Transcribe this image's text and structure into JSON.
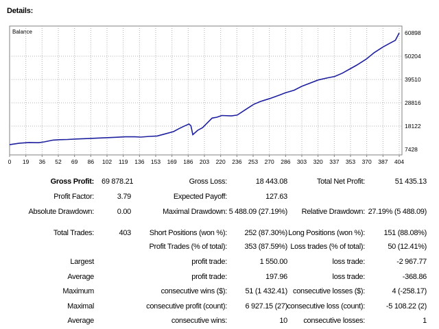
{
  "header": {
    "title": "Details:"
  },
  "chart_data": {
    "type": "line",
    "title": "Balance",
    "x_ticks": [
      "0",
      "19",
      "36",
      "52",
      "69",
      "86",
      "102",
      "119",
      "136",
      "153",
      "169",
      "186",
      "203",
      "220",
      "236",
      "253",
      "270",
      "286",
      "303",
      "320",
      "337",
      "353",
      "370",
      "387",
      "404"
    ],
    "y_ticks": [
      "60898",
      "50204",
      "39510",
      "28816",
      "18122",
      "7428"
    ],
    "ylim": [
      7428,
      60898
    ],
    "xlim": [
      0,
      404
    ],
    "grid": true,
    "line_color": "#1c1f9e",
    "series": [
      {
        "x": [
          0,
          10,
          20,
          30,
          36,
          45,
          52,
          60,
          69,
          80,
          90,
          100,
          110,
          120,
          130,
          136,
          145,
          153,
          160,
          170,
          175,
          180,
          186,
          188,
          190,
          195,
          200,
          205,
          210,
          215,
          220,
          230,
          236,
          245,
          253,
          260,
          270,
          280,
          286,
          295,
          303,
          310,
          320,
          330,
          337,
          345,
          353,
          360,
          370,
          378,
          387,
          395,
          400,
          404
        ],
        "y": [
          9600,
          10300,
          10600,
          10500,
          10900,
          11700,
          11900,
          12000,
          12200,
          12400,
          12600,
          12800,
          13000,
          13200,
          13200,
          13100,
          13400,
          13600,
          14400,
          15600,
          16800,
          17900,
          19100,
          18300,
          14200,
          16200,
          17400,
          19600,
          21800,
          22200,
          23000,
          22800,
          23200,
          25800,
          28100,
          29400,
          30800,
          32400,
          33400,
          34600,
          36400,
          37600,
          39300,
          40300,
          40900,
          42400,
          44400,
          46100,
          48900,
          51800,
          54400,
          56300,
          57500,
          60900
        ]
      }
    ]
  },
  "stats": {
    "gross_profit_label": "Gross Profit:",
    "gross_profit": "69 878.21",
    "gross_loss_label": "Gross Loss:",
    "gross_loss": "18 443.08",
    "total_net_profit_label": "Total Net Profit:",
    "total_net_profit": "51 435.13",
    "profit_factor_label": "Profit Factor:",
    "profit_factor": "3.79",
    "expected_payoff_label": "Expected Payoff:",
    "expected_payoff": "127.63",
    "absolute_drawdown_label": "Absolute Drawdown:",
    "absolute_drawdown": "0.00",
    "maximal_drawdown_label": "Maximal Drawdown:",
    "maximal_drawdown": "5 488.09 (27.19%)",
    "relative_drawdown_label": "Relative Drawdown:",
    "relative_drawdown": "27.19% (5 488.09)",
    "total_trades_label": "Total Trades:",
    "total_trades": "403",
    "short_positions_label": "Short Positions (won %):",
    "short_positions": "252 (87.30%)",
    "long_positions_label": "Long Positions (won %):",
    "long_positions": "151 (88.08%)",
    "profit_trades_label": "Profit Trades (% of total):",
    "profit_trades": "353 (87.59%)",
    "loss_trades_label": "Loss trades (% of total):",
    "loss_trades": "50 (12.41%)",
    "largest_label": "Largest",
    "largest_profit_label": "profit trade:",
    "largest_profit": "1 550.00",
    "largest_loss_label": "loss trade:",
    "largest_loss": "-2 967.77",
    "average_label": "Average",
    "average_profit_label": "profit trade:",
    "average_profit": "197.96",
    "average_loss_label": "loss trade:",
    "average_loss": "-368.86",
    "maximum_label": "Maximum",
    "max_cons_wins_label": "consecutive wins ($):",
    "max_cons_wins": "51 (1 432.41)",
    "max_cons_losses_label": "consecutive losses ($):",
    "max_cons_losses": "4 (-258.17)",
    "maximal_label": "Maximal",
    "maximal_cons_profit_label": "consecutive profit (count):",
    "maximal_cons_profit": "6 927.15 (27)",
    "maximal_cons_loss_label": "consecutive loss (count):",
    "maximal_cons_loss": "-5 108.22 (2)",
    "average2_label": "Average",
    "avg_cons_wins_label": "consecutive wins:",
    "avg_cons_wins": "10",
    "avg_cons_losses_label": "consecutive losses:",
    "avg_cons_losses": "1"
  }
}
